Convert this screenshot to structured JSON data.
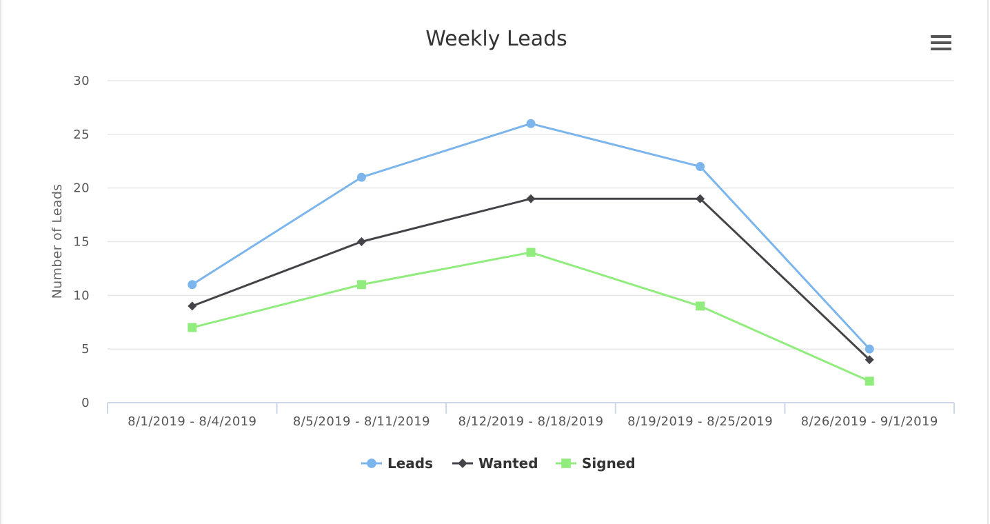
{
  "chart_data": {
    "type": "line",
    "title": "Weekly Leads",
    "xlabel": "",
    "ylabel": "Number of Leads",
    "categories": [
      "8/1/2019 - 8/4/2019",
      "8/5/2019 - 8/11/2019",
      "8/12/2019 - 8/18/2019",
      "8/19/2019 - 8/25/2019",
      "8/26/2019 - 9/1/2019"
    ],
    "yticks": [
      "0",
      "5",
      "10",
      "15",
      "20",
      "25",
      "30"
    ],
    "ylim": [
      0,
      30
    ],
    "grid": true,
    "legend_position": "bottom-center",
    "series": [
      {
        "name": "Leads",
        "values": [
          11,
          21,
          26,
          22,
          5
        ],
        "color": "#7cb5ec",
        "marker": "circle"
      },
      {
        "name": "Wanted",
        "values": [
          9,
          15,
          19,
          19,
          4
        ],
        "color": "#434348",
        "marker": "diamond"
      },
      {
        "name": "Signed",
        "values": [
          7,
          11,
          14,
          9,
          2
        ],
        "color": "#90ed7d",
        "marker": "square"
      }
    ]
  },
  "toolbar": {
    "menu_icon": "hamburger-menu-icon"
  }
}
